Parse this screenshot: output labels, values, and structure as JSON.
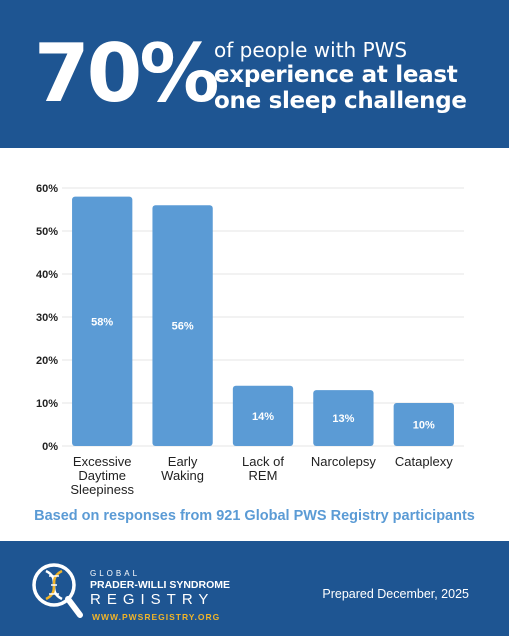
{
  "header": {
    "stat": "70%",
    "line1": "of people with PWS",
    "line2": "experience at least",
    "line3": "one sleep challenge"
  },
  "chart_data": {
    "type": "bar",
    "categories": [
      [
        "Excessive",
        "Daytime",
        "Sleepiness"
      ],
      [
        "Early",
        "Waking"
      ],
      [
        "Lack of",
        "REM"
      ],
      [
        "Narcolepsy"
      ],
      [
        "Cataplexy"
      ]
    ],
    "values": [
      58,
      56,
      14,
      13,
      10
    ],
    "data_labels": [
      "58%",
      "56%",
      "14%",
      "13%",
      "10%"
    ],
    "y_ticks": [
      "0%",
      "10%",
      "20%",
      "30%",
      "40%",
      "50%",
      "60%"
    ],
    "ylim": [
      0,
      60
    ],
    "grid": true,
    "bar_color": "#5b9bd5"
  },
  "footnote": "Based on responses from 921 Global PWS Registry participants",
  "footer": {
    "logo_global": "GLOBAL",
    "logo_name": "PRADER-WILLI SYNDROME",
    "logo_registry": "REGISTRY",
    "logo_url": "WWW.PWSREGISTRY.ORG",
    "prepared": "Prepared December, 2025"
  }
}
